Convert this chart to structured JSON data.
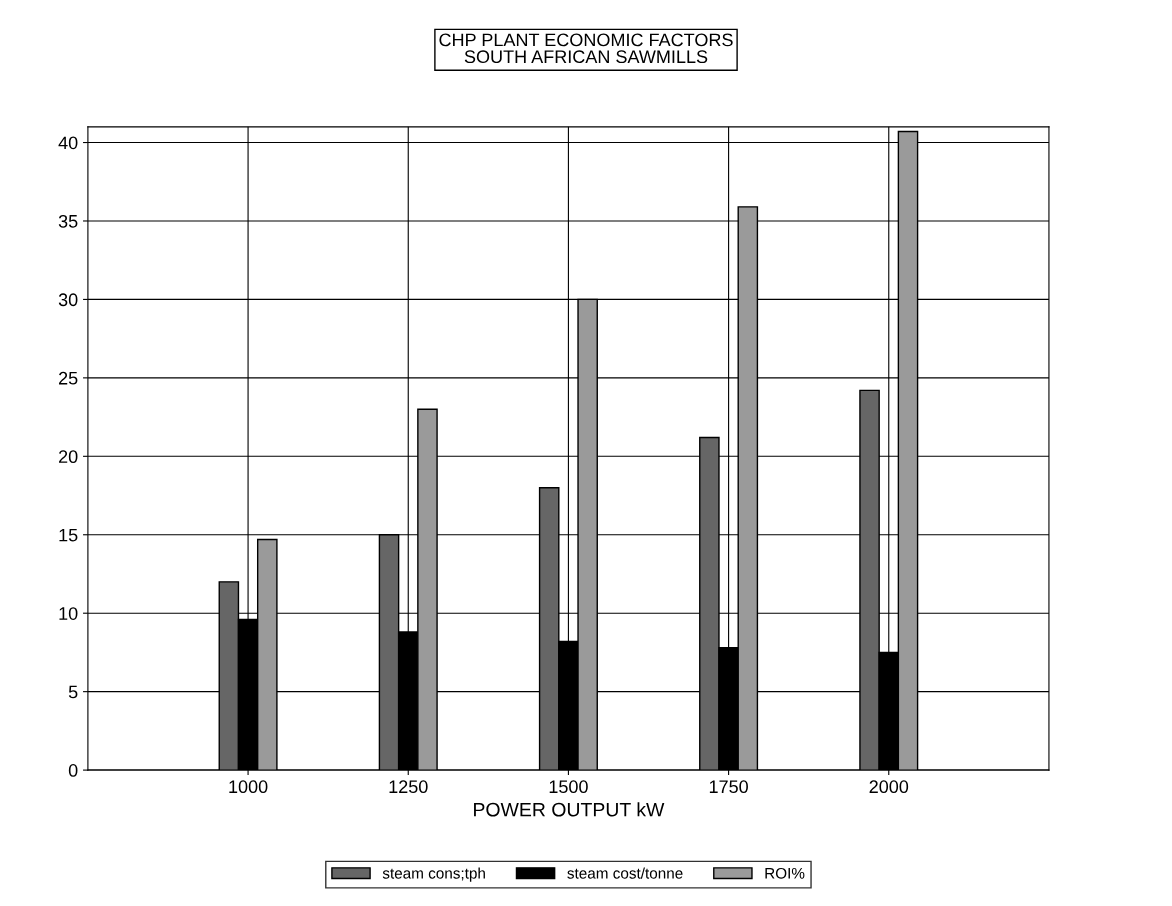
{
  "chart_data": {
    "type": "bar",
    "title": "CHP PLANT ECONOMIC FACTORS\nSOUTH AFRICAN SAWMILLS",
    "xlabel": "POWER OUTPUT kW",
    "categories": [
      "1000",
      "1250",
      "1500",
      "1750",
      "2000"
    ],
    "series": [
      {
        "name": "steam cons;tph",
        "color": "#666666",
        "values": [
          12,
          15,
          18,
          21.2,
          24.2
        ]
      },
      {
        "name": "steam cost/tonne",
        "color": "#000000",
        "values": [
          9.6,
          8.8,
          8.2,
          7.8,
          7.5
        ]
      },
      {
        "name": "ROI%",
        "color": "#9a9a9a",
        "values": [
          14.7,
          23,
          30,
          35.9,
          40.7
        ]
      }
    ],
    "ylim": [
      0,
      41
    ],
    "yticks": [
      0,
      5,
      10,
      15,
      20,
      25,
      30,
      35,
      40
    ],
    "grid": true,
    "legend": "bottom"
  }
}
